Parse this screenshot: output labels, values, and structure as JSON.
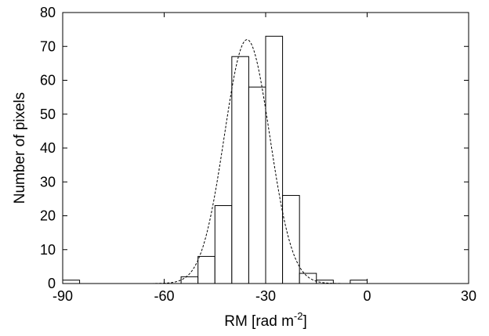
{
  "chart_data": {
    "type": "bar",
    "title": "",
    "xlabel": "RM [rad m",
    "xlabel_sup": "-2",
    "xlabel_end": "]",
    "ylabel": "Number of pixels",
    "xlim": [
      -90,
      30
    ],
    "ylim": [
      0,
      80
    ],
    "xticks": [
      -90,
      -60,
      -30,
      0,
      30
    ],
    "xtick_labels": [
      "-90",
      "-60",
      "-30",
      "0",
      "30"
    ],
    "yticks": [
      0,
      10,
      20,
      30,
      40,
      50,
      60,
      70,
      80
    ],
    "ytick_labels": [
      "0",
      "10",
      "20",
      "30",
      "40",
      "50",
      "60",
      "70",
      "80"
    ],
    "grid": false,
    "histogram": {
      "bin_width": 5,
      "bins": [
        {
          "x0": -90,
          "x1": -85,
          "count": 1
        },
        {
          "x0": -60,
          "x1": -55,
          "count": 0
        },
        {
          "x0": -55,
          "x1": -50,
          "count": 2
        },
        {
          "x0": -50,
          "x1": -45,
          "count": 8
        },
        {
          "x0": -45,
          "x1": -40,
          "count": 23
        },
        {
          "x0": -40,
          "x1": -35,
          "count": 67
        },
        {
          "x0": -35,
          "x1": -30,
          "count": 58
        },
        {
          "x0": -30,
          "x1": -25,
          "count": 73
        },
        {
          "x0": -25,
          "x1": -20,
          "count": 26
        },
        {
          "x0": -20,
          "x1": -15,
          "count": 3
        },
        {
          "x0": -15,
          "x1": -10,
          "count": 1
        },
        {
          "x0": -5,
          "x1": 0,
          "count": 1
        }
      ]
    },
    "fit": {
      "type": "gaussian",
      "style": "dashed",
      "peak": 72,
      "mean": -35.5,
      "sigma": 6.7
    }
  }
}
